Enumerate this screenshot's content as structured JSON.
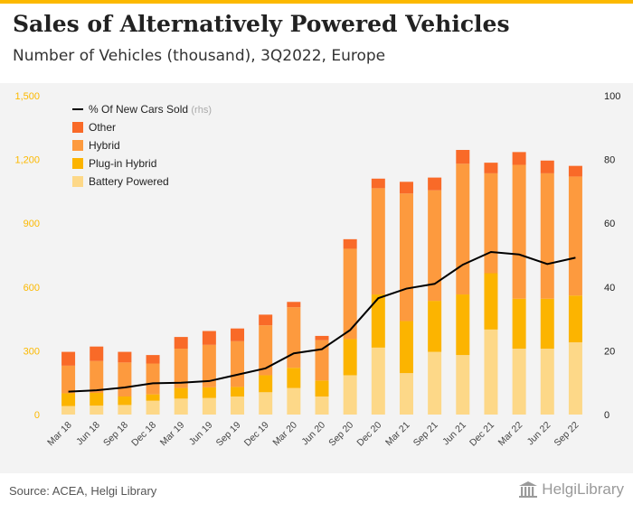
{
  "title": "Sales of Alternatively Powered Vehicles",
  "subtitle": "Number of Vehicles (thousand), 3Q2022, Europe",
  "source": "Source: ACEA, Helgi Library",
  "brand": "HelgiLibrary",
  "colors": {
    "accent": "#fcb900",
    "battery": "#fdd888",
    "plugin": "#fcb400",
    "hybrid": "#fd9a3e",
    "other": "#f96a28",
    "line": "#000000"
  },
  "chart_data": {
    "type": "bar",
    "stacked": true,
    "categories": [
      "Mar 18",
      "Jun 18",
      "Sep 18",
      "Dec 18",
      "Mar 19",
      "Jun 19",
      "Sep 19",
      "Dec 19",
      "Mar 20",
      "Jun 20",
      "Sep 20",
      "Dec 20",
      "Mar 21",
      "Sep 21",
      "Jun 21",
      "Dec 21",
      "Mar 22",
      "Jun 22",
      "Sep 22"
    ],
    "series": [
      {
        "name": "Battery Powered",
        "values": [
          40,
          42,
          45,
          65,
          75,
          78,
          85,
          105,
          125,
          85,
          185,
          315,
          195,
          295,
          280,
          400,
          310,
          310,
          340
        ]
      },
      {
        "name": "Plug-in Hybrid",
        "values": [
          60,
          60,
          40,
          30,
          50,
          50,
          45,
          80,
          95,
          75,
          170,
          250,
          245,
          240,
          285,
          265,
          235,
          235,
          220
        ]
      },
      {
        "name": "Hybrid",
        "values": [
          130,
          150,
          160,
          145,
          185,
          200,
          215,
          235,
          285,
          190,
          425,
          500,
          600,
          520,
          615,
          470,
          630,
          590,
          560
        ]
      },
      {
        "name": "Other",
        "values": [
          65,
          68,
          50,
          40,
          55,
          65,
          60,
          50,
          25,
          20,
          45,
          45,
          55,
          60,
          65,
          50,
          60,
          60,
          50
        ]
      }
    ],
    "line_series": {
      "name": "% Of New Cars Sold",
      "note": "(rhs)",
      "values": [
        7.2,
        7.6,
        8.5,
        9.8,
        10.0,
        10.5,
        12.5,
        14.5,
        19.2,
        20.5,
        26.5,
        36.5,
        39.5,
        41.0,
        47.0,
        51.0,
        50.2,
        47.2,
        49.2
      ]
    },
    "y_left": {
      "min": 0,
      "max": 1500,
      "ticks": [
        "0",
        "300",
        "600",
        "900",
        "1,200",
        "1,500"
      ]
    },
    "y_right": {
      "min": 0,
      "max": 100,
      "ticks": [
        "0",
        "20",
        "40",
        "60",
        "80",
        "100"
      ]
    },
    "legend_position": "top-left",
    "grid": false
  }
}
